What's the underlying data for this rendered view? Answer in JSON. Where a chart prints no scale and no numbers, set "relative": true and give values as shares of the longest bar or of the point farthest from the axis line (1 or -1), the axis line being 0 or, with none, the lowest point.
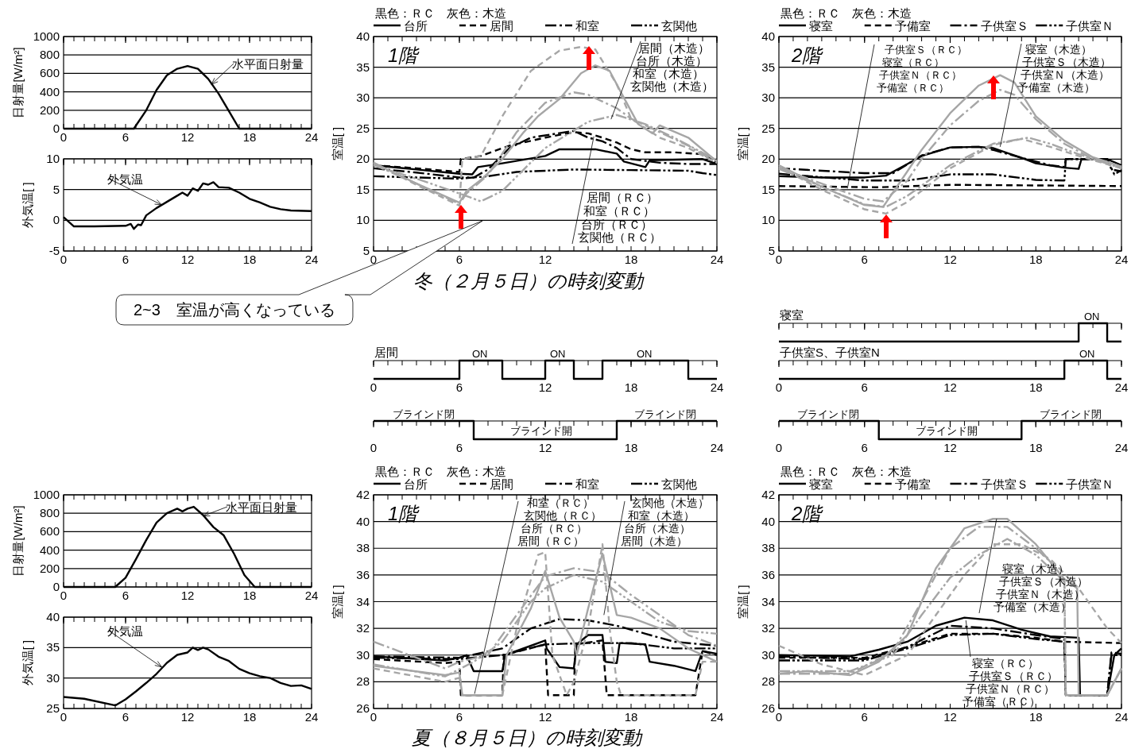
{
  "chart_data": [
    {
      "type": "line",
      "ylabel": "日射量[W/m²]",
      "xlim": [
        0,
        24
      ],
      "xticks": [
        0,
        6,
        12,
        18,
        24
      ],
      "ylim": [
        0,
        1000
      ],
      "yticks": [
        0,
        200,
        400,
        600,
        800,
        1000
      ],
      "grid": "y",
      "annotations": [
        {
          "text": "水平面日射量",
          "x": 14.3,
          "y": 480
        }
      ],
      "series": [
        {
          "color": "#000000",
          "x": [
            0,
            6.8,
            8,
            9,
            10,
            11,
            12,
            13,
            14,
            15,
            16,
            17,
            24
          ],
          "values": [
            0,
            0,
            200,
            420,
            580,
            650,
            680,
            650,
            540,
            380,
            190,
            0,
            0
          ]
        }
      ]
    },
    {
      "type": "line",
      "ylabel": "室温[ ]",
      "legend_title": "黒色：ＲＣ　灰色：木造",
      "legend": "top",
      "xlim": [
        0,
        24
      ],
      "xticks": [
        0,
        6,
        12,
        18,
        24
      ],
      "ylim": [
        5,
        40
      ],
      "yticks": [
        5,
        10,
        15,
        20,
        25,
        30,
        35,
        40
      ],
      "grid": "y",
      "annotations": [
        "1階",
        {
          "text": "居間（木造）",
          "x": 16.6,
          "y": 26.5
        },
        "台所（木造）",
        "和室（木造）",
        "玄関他（木造）",
        "居間（ＲＣ）",
        "和室（ＲＣ）",
        {
          "text": "台所（ＲＣ）",
          "x": 15.4,
          "y": 23.7
        },
        "玄関他（ＲＣ）",
        "冬（２月５日）の時刻変動",
        "2~3　室温が高くなっている"
      ],
      "series": [
        {
          "name": "台所",
          "color": "#000000",
          "line_style": "solid",
          "x": [
            0,
            3,
            6,
            6.9,
            7.3,
            9,
            12,
            13,
            15.5,
            17,
            17.5,
            19,
            19.3,
            23,
            24
          ],
          "values": [
            19.0,
            18.3,
            17.6,
            17.5,
            18.7,
            19.3,
            20.5,
            21.6,
            21.6,
            20.9,
            19.6,
            18.7,
            19.8,
            20.0,
            19.2
          ]
        },
        {
          "name": "居間",
          "color": "#000000",
          "line_style": "dashed",
          "x": [
            0,
            3,
            6,
            6.1,
            7.5,
            9.5,
            12,
            14,
            15,
            16,
            17,
            18,
            19,
            21,
            23,
            24
          ],
          "values": [
            19.0,
            18.5,
            17.9,
            20.0,
            20.5,
            22.2,
            23.5,
            24.4,
            24.2,
            23.5,
            22.7,
            21.6,
            21.1,
            21.1,
            20.8,
            19.4
          ]
        },
        {
          "name": "和室",
          "color": "#000000",
          "line_style": "dashdot",
          "x": [
            0,
            3,
            6,
            7,
            8,
            9.5,
            11,
            14,
            15,
            16,
            17,
            18,
            20,
            22,
            24
          ],
          "values": [
            18.5,
            17.8,
            17.0,
            17.0,
            18.3,
            21.8,
            23.5,
            24.6,
            23.5,
            22.9,
            21.8,
            20.0,
            19.4,
            19.2,
            19.2
          ]
        },
        {
          "name": "玄関他",
          "color": "#000000",
          "line_style": "dashdotdot",
          "x": [
            0,
            6,
            8,
            10,
            14,
            18,
            22,
            23,
            24
          ],
          "values": [
            17.2,
            16.8,
            17.2,
            17.9,
            18.3,
            18.2,
            18.1,
            17.7,
            17.4
          ]
        },
        {
          "color": "#a6a6a6",
          "line_style": "solid",
          "x": [
            0,
            3,
            6,
            6.5,
            7.5,
            9,
            10.5,
            11.5,
            13,
            14.5,
            15.5,
            16.5,
            17.5,
            18.5,
            19.5,
            20,
            22,
            24
          ],
          "values": [
            19.4,
            16.0,
            12.9,
            14.8,
            16.6,
            20.0,
            24.4,
            27.0,
            29.8,
            34.0,
            35.3,
            34.4,
            30.0,
            25.7,
            24.2,
            25.5,
            23.5,
            19.6
          ]
        },
        {
          "color": "#a6a6a6",
          "line_style": "dashed",
          "x": [
            0,
            3,
            6,
            6.2,
            7.5,
            9,
            11,
            13,
            14.5,
            15.5,
            17,
            18,
            20,
            22,
            24
          ],
          "values": [
            19.4,
            15.8,
            12.4,
            20.0,
            20.5,
            27.0,
            34.4,
            37.7,
            38.3,
            37.9,
            32.2,
            26.6,
            23.5,
            21.8,
            19.4
          ]
        },
        {
          "color": "#a6a6a6",
          "line_style": "dashdot",
          "x": [
            0,
            3,
            6,
            6.5,
            8,
            10,
            12,
            14,
            15,
            17,
            18,
            20,
            22,
            24
          ],
          "values": [
            19.1,
            16.0,
            12.7,
            14.4,
            17.4,
            24.4,
            29.2,
            30.9,
            30.5,
            28.3,
            26.6,
            24.4,
            22.2,
            19.4
          ]
        },
        {
          "color": "#a6a6a6",
          "line_style": "dashdotdot",
          "x": [
            0,
            3,
            6,
            7.5,
            9,
            12,
            15,
            17,
            19,
            21,
            24
          ],
          "values": [
            19.0,
            16.8,
            14.4,
            13.1,
            14.8,
            21.8,
            26.1,
            27.2,
            25.7,
            23.5,
            19.8
          ]
        }
      ]
    },
    {
      "type": "line",
      "ylabel": "室温[ ]",
      "legend_title": "黒色：ＲＣ　灰色：木造",
      "legend": "top",
      "xlim": [
        0,
        24
      ],
      "xticks": [
        0,
        6,
        12,
        18,
        24
      ],
      "ylim": [
        5,
        40
      ],
      "yticks": [
        5,
        10,
        15,
        20,
        25,
        30,
        35,
        40
      ],
      "grid": "y",
      "annotations": [
        "2階",
        {
          "text": "子供室Ｓ（ＲＣ）",
          "x": 4.8,
          "y": 15.2
        },
        "寝室（ＲＣ）",
        "子供室Ｎ（ＲＣ）",
        "予備室（ＲＣ）",
        {
          "text": "寝室（木造）",
          "x": 15.5,
          "y": 22.0
        },
        "子供室Ｓ（木造）",
        "子供室Ｎ（木造）",
        "予備室（木造）"
      ],
      "series": [
        {
          "name": "寝室",
          "color": "#000000",
          "line_style": "solid",
          "x": [
            0,
            3,
            6,
            7.5,
            9,
            10,
            12,
            14,
            15,
            17,
            18,
            20,
            21,
            21.2,
            23,
            24
          ],
          "values": [
            17.2,
            17.0,
            17.0,
            17.3,
            19.2,
            20.5,
            21.9,
            22.0,
            21.8,
            20.2,
            19.3,
            18.6,
            18.4,
            20.0,
            20.0,
            19.0
          ]
        },
        {
          "name": "予備室",
          "color": "#000000",
          "line_style": "dashed",
          "x": [
            0,
            7,
            12,
            18,
            24
          ],
          "values": [
            15.6,
            15.4,
            15.8,
            15.7,
            15.6
          ]
        },
        {
          "name": "子供室Ｓ",
          "color": "#000000",
          "line_style": "dashdot",
          "x": [
            0,
            6,
            8,
            10,
            12,
            14,
            15,
            17,
            19,
            20,
            20.1,
            23,
            23.3,
            24
          ],
          "values": [
            18.5,
            17.7,
            17.7,
            20.6,
            21.9,
            22.0,
            21.5,
            20.2,
            19.0,
            18.7,
            20.0,
            20.0,
            18.3,
            18.0
          ]
        },
        {
          "name": "子供室Ｎ",
          "color": "#000000",
          "line_style": "dashdotdot",
          "x": [
            0,
            6,
            9,
            12,
            15,
            18,
            20,
            20.1,
            23,
            23.5,
            24
          ],
          "values": [
            17.6,
            16.5,
            16.5,
            17.5,
            17.5,
            16.6,
            16.5,
            20.0,
            20.0,
            17.5,
            18.2
          ]
        },
        {
          "color": "#a6a6a6",
          "line_style": "solid",
          "x": [
            0,
            3,
            6,
            7.3,
            9,
            10,
            12,
            14,
            15.5,
            16.5,
            18,
            20,
            22,
            24
          ],
          "values": [
            19.0,
            15.5,
            12.5,
            12.2,
            18.0,
            21.5,
            27.5,
            32.0,
            33.7,
            32.5,
            27.0,
            23.0,
            20.3,
            18.8
          ]
        },
        {
          "color": "#a6a6a6",
          "line_style": "dashed",
          "x": [
            0,
            3,
            6,
            7.5,
            9,
            12,
            15,
            17,
            19,
            21,
            24
          ],
          "values": [
            18.7,
            15.0,
            11.8,
            11.1,
            13.0,
            18.5,
            22.3,
            23.3,
            22.0,
            20.5,
            18.5
          ]
        },
        {
          "color": "#a6a6a6",
          "line_style": "dashdot",
          "x": [
            0,
            3,
            6,
            7.3,
            9,
            10,
            12,
            14,
            15.5,
            16.5,
            18,
            20,
            22,
            24
          ],
          "values": [
            18.6,
            16.0,
            13.5,
            13.1,
            16.5,
            20.0,
            25.5,
            29.5,
            31.3,
            30.5,
            26.5,
            22.5,
            20.0,
            18.5
          ]
        },
        {
          "color": "#a6a6a6",
          "line_style": "dashdotdot",
          "x": [
            0,
            3,
            6,
            7.5,
            9,
            12,
            15,
            17.5,
            19,
            21,
            24
          ],
          "values": [
            18.4,
            15.5,
            12.6,
            12.2,
            14.0,
            19.0,
            22.5,
            23.5,
            22.5,
            20.8,
            18.6
          ]
        }
      ]
    },
    {
      "type": "line",
      "ylabel": "外気温[ ]",
      "xlim": [
        0,
        24
      ],
      "xticks": [
        0,
        6,
        12,
        18,
        24
      ],
      "ylim": [
        -5,
        10
      ],
      "yticks": [
        -5,
        0,
        5,
        10
      ],
      "grid": "y",
      "annotations": [
        {
          "text": "外気温",
          "x": 9.5,
          "y": 2.5
        }
      ],
      "series": [
        {
          "color": "#000000",
          "x": [
            0,
            1,
            3,
            6,
            6.5,
            6.8,
            7.2,
            7.5,
            8,
            9,
            10,
            11,
            11.5,
            12,
            12.5,
            13,
            13.5,
            14,
            14.5,
            15,
            16,
            17,
            18,
            19,
            20,
            21,
            22,
            24
          ],
          "values": [
            0.5,
            -1.0,
            -1.0,
            -0.9,
            -0.6,
            -1.4,
            -0.7,
            -0.8,
            0.8,
            2.0,
            3.0,
            4.0,
            4.5,
            4.0,
            5.2,
            4.8,
            6.0,
            5.8,
            6.2,
            5.4,
            5.3,
            4.5,
            3.5,
            2.9,
            2.2,
            1.8,
            1.6,
            1.5
          ]
        }
      ]
    },
    {
      "type": "step",
      "relative": true,
      "title": "寝室",
      "tick_labels": false,
      "xlim": [
        0,
        24
      ],
      "xticks": [
        0,
        6,
        12,
        18,
        24
      ],
      "annotations": [
        "ON"
      ],
      "series": [
        {
          "color": "#000000",
          "x": [
            0,
            21,
            23,
            24
          ],
          "values": [
            0,
            1,
            0,
            0
          ]
        }
      ]
    },
    {
      "type": "step",
      "relative": true,
      "title": "居間",
      "xlim": [
        0,
        24
      ],
      "xticks": [
        0,
        6,
        12,
        18,
        24
      ],
      "annotations": [
        "ON",
        "ON",
        "ON"
      ],
      "series": [
        {
          "color": "#000000",
          "x": [
            0,
            6,
            9,
            12,
            14,
            16,
            22,
            24
          ],
          "values": [
            0,
            1,
            0,
            1,
            0,
            1,
            0,
            0
          ]
        }
      ]
    },
    {
      "type": "step",
      "relative": true,
      "title": "子供室S、子供室N",
      "xlim": [
        0,
        24
      ],
      "xticks": [
        0,
        6,
        12,
        18,
        24
      ],
      "annotations": [
        "ON"
      ],
      "series": [
        {
          "color": "#000000",
          "x": [
            0,
            20,
            23,
            24
          ],
          "values": [
            0,
            1,
            0,
            0
          ]
        }
      ]
    },
    {
      "type": "step",
      "relative": true,
      "xlim": [
        0,
        24
      ],
      "xticks": [
        0,
        6,
        12,
        18,
        24
      ],
      "annotations": [
        "ブラインド閉",
        "ブラインド開",
        "ブラインド閉"
      ],
      "series": [
        {
          "color": "#000000",
          "x": [
            0,
            7,
            17,
            24
          ],
          "values": [
            1,
            0,
            1,
            1
          ]
        }
      ]
    },
    {
      "type": "step",
      "relative": true,
      "xlim": [
        0,
        24
      ],
      "xticks": [
        0,
        6,
        12,
        18,
        24
      ],
      "annotations": [
        "ブラインド閉",
        "ブラインド開",
        "ブラインド閉"
      ],
      "series": [
        {
          "color": "#000000",
          "x": [
            0,
            7,
            17,
            24
          ],
          "values": [
            1,
            0,
            1,
            1
          ]
        }
      ]
    },
    {
      "type": "line",
      "ylabel": "日射量[W/m²]",
      "xlim": [
        0,
        24
      ],
      "xticks": [
        0,
        6,
        12,
        18,
        24
      ],
      "ylim": [
        0,
        1000
      ],
      "yticks": [
        0,
        200,
        400,
        600,
        800,
        1000
      ],
      "grid": "y",
      "annotations": [
        {
          "text": "水平面日射量",
          "x": 13.5,
          "y": 770
        }
      ],
      "series": [
        {
          "color": "#000000",
          "x": [
            0,
            5,
            6,
            7,
            8,
            9,
            10,
            11,
            11.5,
            12,
            12.6,
            13.5,
            14.5,
            15.5,
            16.5,
            17.5,
            18.5,
            24
          ],
          "values": [
            0,
            0,
            100,
            300,
            510,
            700,
            800,
            850,
            820,
            850,
            870,
            780,
            650,
            560,
            360,
            130,
            0,
            0
          ]
        }
      ]
    },
    {
      "type": "line",
      "ylabel": "室温[ ]",
      "legend_title": "黒色：ＲＣ　灰色：木造",
      "legend": "top",
      "xlim": [
        0,
        24
      ],
      "xticks": [
        0,
        6,
        12,
        18,
        24
      ],
      "ylim": [
        26,
        42
      ],
      "yticks": [
        26,
        28,
        30,
        32,
        34,
        36,
        38,
        40,
        42
      ],
      "grid": "y",
      "annotations": [
        "1階",
        {
          "text": "和室（ＲＣ）",
          "x": 7.06,
          "y": 27.1
        },
        "玄関他（ＲＣ）",
        "台所（ＲＣ）",
        "居間（ＲＣ）",
        {
          "text": "玄関他（木造）",
          "x": 16.1,
          "y": 33.0
        },
        "和室（木造）",
        "台所（木造）",
        "居間（木造）",
        "夏（８月５日）の時刻変動"
      ],
      "series": [
        {
          "name": "台所",
          "color": "#000000",
          "line_style": "solid",
          "x": [
            0,
            5,
            6,
            6.5,
            7,
            9,
            9.2,
            12,
            12.1,
            13,
            14,
            14.2,
            15,
            16,
            16.2,
            17,
            17.2,
            19,
            19.3,
            21,
            22.5,
            23,
            24
          ],
          "values": [
            29.9,
            29.6,
            29.8,
            30.0,
            28.8,
            28.8,
            30.0,
            31.1,
            30.5,
            29.1,
            29.0,
            30.8,
            31.5,
            31.5,
            29.5,
            29.4,
            30.9,
            30.8,
            29.5,
            29.2,
            28.8,
            30.3,
            30.1
          ]
        },
        {
          "name": "居間",
          "color": "#000000",
          "line_style": "dashed",
          "x": [
            0,
            5,
            6,
            6.1,
            9,
            9.1,
            12,
            12.2,
            14,
            14.1,
            16,
            16.3,
            22.5,
            23,
            24
          ],
          "values": [
            29.7,
            29.4,
            29.5,
            27.0,
            27.0,
            30.0,
            30.8,
            27.0,
            27.0,
            30.8,
            31.1,
            27.0,
            27.0,
            30.3,
            30.0
          ]
        },
        {
          "name": "和室",
          "color": "#000000",
          "line_style": "dashdot",
          "x": [
            0,
            6,
            9,
            11,
            13,
            15,
            17,
            19,
            21,
            24
          ],
          "values": [
            29.9,
            29.8,
            30.5,
            32.0,
            32.7,
            32.6,
            32.2,
            31.6,
            31.0,
            30.7
          ]
        },
        {
          "name": "玄関他",
          "color": "#000000",
          "line_style": "dashdotdot",
          "x": [
            0,
            6,
            9,
            12,
            15,
            18,
            21,
            24
          ],
          "values": [
            29.8,
            29.7,
            30.0,
            30.8,
            30.9,
            30.9,
            30.5,
            30.5
          ]
        },
        {
          "color": "#a6a6a6",
          "line_style": "solid",
          "x": [
            0,
            5,
            6,
            6.2,
            9,
            9.3,
            11,
            12,
            13,
            14,
            14.2,
            15,
            16,
            17,
            18,
            20,
            22,
            24
          ],
          "values": [
            29.2,
            28.5,
            28.7,
            27.0,
            27.0,
            30.0,
            33.5,
            36.3,
            32.8,
            31.0,
            30.0,
            33.5,
            37.6,
            33.0,
            32.8,
            32.0,
            30.5,
            29.5
          ]
        },
        {
          "color": "#a6a6a6",
          "line_style": "dashed",
          "x": [
            0,
            5,
            6,
            6.2,
            9,
            10,
            11.5,
            12,
            12.5,
            13,
            13.5,
            14,
            15,
            16,
            16.5,
            17,
            17.3,
            22.5,
            23,
            24
          ],
          "values": [
            29.0,
            28.0,
            28.3,
            27.0,
            27.0,
            32.0,
            37.5,
            37.7,
            30.0,
            28.5,
            27.0,
            28.0,
            32.0,
            38.3,
            32.0,
            28.0,
            27.0,
            27.0,
            29.5,
            29.5
          ]
        },
        {
          "color": "#a6a6a6",
          "line_style": "dashdot",
          "x": [
            0,
            5,
            6,
            8,
            10,
            12,
            14,
            16,
            18,
            20,
            22,
            24
          ],
          "values": [
            31.0,
            29.0,
            29.5,
            30.0,
            33.0,
            35.9,
            36.5,
            36.2,
            34.5,
            33.0,
            31.5,
            30.7
          ]
        },
        {
          "color": "#a6a6a6",
          "line_style": "dashdotdot",
          "x": [
            0,
            5,
            7,
            9,
            11,
            12,
            14,
            16,
            18,
            20,
            22,
            24
          ],
          "values": [
            29.3,
            28.4,
            29.5,
            31.0,
            34.0,
            35.0,
            36.0,
            35.5,
            34.0,
            32.5,
            31.8,
            31.6
          ]
        }
      ]
    },
    {
      "type": "line",
      "ylabel": "室温[ ]",
      "legend_title": "黒色：ＲＣ　灰色：木造",
      "legend": "top",
      "xlim": [
        0,
        24
      ],
      "xticks": [
        0,
        6,
        12,
        18,
        24
      ],
      "ylim": [
        26,
        42
      ],
      "yticks": [
        26,
        28,
        30,
        32,
        34,
        36,
        38,
        40,
        42
      ],
      "grid": "y",
      "annotations": [
        "2階",
        "寝室（木造）",
        "子供室Ｓ（木造）",
        "子供室Ｎ（木造）",
        {
          "text": "予備室（木造）",
          "x": 15.25,
          "y": 40.2
        },
        {
          "text": "寝室（ＲＣ）",
          "x": 13.1,
          "y": 32.6
        },
        "子供室Ｓ（ＲＣ）",
        "子供室Ｎ（ＲＣ）",
        "予備室（ＲＣ）"
      ],
      "series": [
        {
          "name": "寝室",
          "color": "#000000",
          "line_style": "solid",
          "x": [
            0,
            5,
            7,
            9,
            11,
            13,
            15,
            17,
            19,
            21,
            21.1,
            23,
            23.5,
            24
          ],
          "values": [
            30.0,
            29.9,
            30.4,
            31.0,
            32.2,
            32.8,
            32.6,
            31.9,
            31.4,
            31.3,
            27.0,
            27.0,
            30.0,
            30.5
          ]
        },
        {
          "name": "予備室",
          "color": "#000000",
          "line_style": "dashed",
          "x": [
            0,
            6,
            9,
            12,
            15,
            18,
            20,
            24
          ],
          "values": [
            29.8,
            29.8,
            30.6,
            31.6,
            31.6,
            31.3,
            31.0,
            30.9
          ]
        },
        {
          "name": "子供室Ｓ",
          "color": "#000000",
          "line_style": "dashdot",
          "x": [
            0,
            6,
            9,
            12,
            15,
            18,
            20,
            20.1,
            23,
            23.3,
            24
          ],
          "values": [
            29.9,
            29.7,
            30.6,
            32.2,
            32.0,
            31.5,
            31.2,
            27.0,
            27.0,
            30.2,
            30.1
          ]
        },
        {
          "name": "子供室Ｎ",
          "color": "#000000",
          "line_style": "dashdotdot",
          "x": [
            0,
            6,
            9,
            12,
            15,
            18,
            20,
            20.1,
            23,
            23.3,
            24
          ],
          "values": [
            29.6,
            29.6,
            30.5,
            31.5,
            31.6,
            31.2,
            31.0,
            27.0,
            27.0,
            30.0,
            30.0
          ]
        },
        {
          "color": "#a6a6a6",
          "line_style": "solid",
          "x": [
            0,
            2,
            5,
            7,
            9,
            11,
            13,
            15,
            16,
            18,
            20,
            20.9,
            21,
            23,
            24
          ],
          "values": [
            28.6,
            28.8,
            28.5,
            29.5,
            31.5,
            36.5,
            39.5,
            40.2,
            40.2,
            38.3,
            35.7,
            35.0,
            27.0,
            27.0,
            29.0
          ]
        },
        {
          "color": "#a6a6a6",
          "line_style": "dashed",
          "x": [
            0,
            3,
            6,
            9,
            11,
            13,
            15,
            17,
            19,
            21,
            23,
            24
          ],
          "values": [
            30.7,
            29.3,
            28.5,
            30.0,
            33.0,
            36.0,
            38.3,
            38.3,
            37.2,
            35.0,
            32.0,
            30.9
          ]
        },
        {
          "color": "#a6a6a6",
          "line_style": "dashdot",
          "x": [
            0,
            5,
            8,
            10,
            12,
            14,
            16,
            18,
            19,
            20,
            20.1,
            23,
            24
          ],
          "values": [
            28.6,
            28.6,
            30.3,
            34.0,
            38.0,
            39.6,
            39.6,
            38.0,
            37.0,
            35.5,
            27.0,
            27.0,
            29.0
          ]
        },
        {
          "color": "#a6a6a6",
          "line_style": "dashdotdot",
          "x": [
            0,
            5,
            8,
            10,
            12,
            14,
            16,
            18,
            20,
            20.1,
            23,
            24
          ],
          "values": [
            28.8,
            28.8,
            30.0,
            33.0,
            35.8,
            37.5,
            38.7,
            37.5,
            35.5,
            27.0,
            27.0,
            29.0
          ]
        }
      ]
    },
    {
      "type": "line",
      "ylabel": "外気温[ ]",
      "xlim": [
        0,
        24
      ],
      "xticks": [
        0,
        6,
        12,
        18,
        24
      ],
      "ylim": [
        25,
        40
      ],
      "yticks": [
        25,
        30,
        35,
        40
      ],
      "grid": "y",
      "annotations": [
        {
          "text": "外気温",
          "x": 9.5,
          "y": 31.8
        }
      ],
      "series": [
        {
          "color": "#000000",
          "x": [
            0,
            2,
            5,
            6,
            7,
            8,
            9,
            10,
            11,
            12,
            12.5,
            13,
            13.5,
            14,
            15,
            16,
            17,
            18,
            19,
            20,
            21,
            22,
            23,
            24
          ],
          "values": [
            26.9,
            26.6,
            25.5,
            26.5,
            27.8,
            29.2,
            30.7,
            32.5,
            33.8,
            34.2,
            35.0,
            34.6,
            35.0,
            34.7,
            33.5,
            32.8,
            31.5,
            30.8,
            30.3,
            30.0,
            29.2,
            28.7,
            28.8,
            28.2
          ]
        }
      ]
    }
  ]
}
